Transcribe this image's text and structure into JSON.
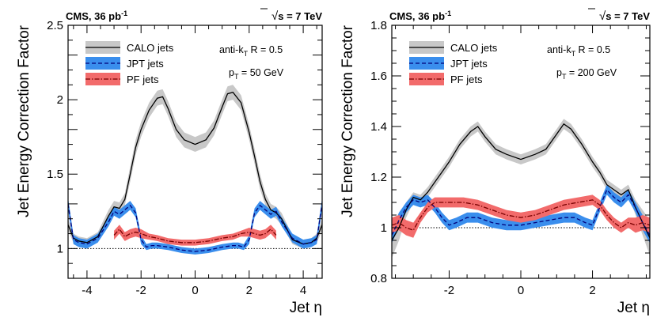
{
  "chart_data": [
    {
      "type": "line",
      "header_left": "CMS, 36 pb",
      "header_left_sup": "-1",
      "header_right_main": "s = 7 TeV",
      "header_right_root": "√",
      "ylabel": "Jet Energy Correction Factor",
      "xlabel": "Jet η",
      "xlim": [
        -4.7,
        4.7
      ],
      "ylim": [
        0.8,
        2.5
      ],
      "xticks": [
        -4,
        -2,
        0,
        2,
        4
      ],
      "yticks": [
        1,
        1.5,
        2,
        2.5
      ],
      "xtick_labels": [
        "-4",
        "-2",
        "0",
        "2",
        "4"
      ],
      "ytick_labels": [
        "1",
        "1.5",
        "2",
        "2.5"
      ],
      "reference_line": 1,
      "annotation_algo": "anti-k",
      "annotation_algo_sub": "T",
      "annotation_algo_rest": " R = 0.5",
      "annotation_pt_main": "p",
      "annotation_pt_sub": "T",
      "annotation_pt_rest": " = 50 GeV",
      "legend_position": "top-left",
      "grid": false,
      "series": [
        {
          "name": "CALO jets",
          "color": "#000000",
          "band_color": "#c8c8c8",
          "x": [
            -4.7,
            -4.5,
            -4.3,
            -4.0,
            -3.6,
            -3.2,
            -3.0,
            -2.8,
            -2.6,
            -2.4,
            -2.2,
            -2.0,
            -1.7,
            -1.4,
            -1.2,
            -1.0,
            -0.7,
            -0.4,
            0.0,
            0.4,
            0.7,
            1.0,
            1.2,
            1.4,
            1.7,
            2.0,
            2.2,
            2.4,
            2.6,
            2.8,
            3.0,
            3.2,
            3.6,
            4.0,
            4.3,
            4.5,
            4.7
          ],
          "y": [
            1.16,
            1.07,
            1.05,
            1.04,
            1.08,
            1.22,
            1.28,
            1.27,
            1.33,
            1.5,
            1.68,
            1.8,
            1.93,
            2.01,
            2.02,
            1.94,
            1.8,
            1.73,
            1.7,
            1.73,
            1.81,
            1.95,
            2.04,
            2.05,
            1.98,
            1.78,
            1.62,
            1.45,
            1.33,
            1.26,
            1.24,
            1.2,
            1.06,
            1.03,
            1.04,
            1.07,
            1.16
          ],
          "band": [
            0.04,
            0.03,
            0.03,
            0.03,
            0.03,
            0.04,
            0.04,
            0.04,
            0.04,
            0.05,
            0.05,
            0.05,
            0.05,
            0.05,
            0.05,
            0.05,
            0.05,
            0.05,
            0.05,
            0.05,
            0.05,
            0.05,
            0.05,
            0.05,
            0.05,
            0.05,
            0.05,
            0.05,
            0.04,
            0.04,
            0.04,
            0.04,
            0.03,
            0.03,
            0.03,
            0.03,
            0.04
          ]
        },
        {
          "name": "JPT jets",
          "color": "#00007a",
          "band_color": "#3a8eed",
          "x": [
            -4.7,
            -4.5,
            -4.3,
            -4.0,
            -3.6,
            -3.2,
            -3.0,
            -2.8,
            -2.6,
            -2.4,
            -2.2,
            -2.0,
            -1.8,
            -1.6,
            -1.4,
            -1.0,
            -0.5,
            0.0,
            0.5,
            1.0,
            1.4,
            1.6,
            1.8,
            2.0,
            2.2,
            2.4,
            2.6,
            2.8,
            3.0,
            3.2,
            3.6,
            4.0,
            4.3,
            4.5,
            4.7
          ],
          "y": [
            1.3,
            1.06,
            1.04,
            1.03,
            1.07,
            1.18,
            1.25,
            1.23,
            1.26,
            1.29,
            1.24,
            1.06,
            1.01,
            1.02,
            1.02,
            1.01,
            0.99,
            0.98,
            0.99,
            1.01,
            1.02,
            1.02,
            1.01,
            1.06,
            1.24,
            1.29,
            1.26,
            1.23,
            1.25,
            1.18,
            1.07,
            1.03,
            1.04,
            1.06,
            1.3
          ],
          "band": [
            0.04,
            0.03,
            0.03,
            0.03,
            0.03,
            0.03,
            0.03,
            0.03,
            0.03,
            0.03,
            0.03,
            0.03,
            0.02,
            0.02,
            0.02,
            0.02,
            0.02,
            0.02,
            0.02,
            0.02,
            0.02,
            0.02,
            0.02,
            0.03,
            0.03,
            0.03,
            0.03,
            0.03,
            0.03,
            0.03,
            0.03,
            0.03,
            0.03,
            0.03,
            0.04
          ]
        },
        {
          "name": "PF jets",
          "color": "#7a0000",
          "band_color": "#f26b6b",
          "x": [
            -3.0,
            -2.8,
            -2.6,
            -2.4,
            -2.2,
            -2.0,
            -1.7,
            -1.4,
            -1.0,
            -0.5,
            0.0,
            0.5,
            1.0,
            1.4,
            1.7,
            2.0,
            2.2,
            2.4,
            2.6,
            2.8,
            3.0
          ],
          "y": [
            1.09,
            1.13,
            1.08,
            1.1,
            1.11,
            1.1,
            1.08,
            1.07,
            1.05,
            1.04,
            1.04,
            1.05,
            1.07,
            1.08,
            1.1,
            1.11,
            1.1,
            1.09,
            1.1,
            1.13,
            1.09
          ],
          "band": [
            0.03,
            0.03,
            0.03,
            0.03,
            0.03,
            0.03,
            0.02,
            0.02,
            0.02,
            0.02,
            0.02,
            0.02,
            0.02,
            0.02,
            0.02,
            0.03,
            0.03,
            0.03,
            0.03,
            0.03,
            0.03
          ]
        }
      ]
    },
    {
      "type": "line",
      "header_left": "CMS, 36 pb",
      "header_left_sup": "-1",
      "header_right_main": "s = 7 TeV",
      "header_right_root": "√",
      "ylabel": "Jet Energy Correction Factor",
      "xlabel": "Jet η",
      "xlim": [
        -3.6,
        3.6
      ],
      "ylim": [
        0.8,
        1.8
      ],
      "xticks": [
        -2,
        0,
        2
      ],
      "yticks": [
        0.8,
        1,
        1.2,
        1.4,
        1.6,
        1.8
      ],
      "xtick_labels": [
        "-2",
        "0",
        "2"
      ],
      "ytick_labels": [
        "0.8",
        "1",
        "1.2",
        "1.4",
        "1.6",
        "1.8"
      ],
      "reference_line": 1,
      "annotation_algo": "anti-k",
      "annotation_algo_sub": "T",
      "annotation_algo_rest": " R = 0.5",
      "annotation_pt_main": "p",
      "annotation_pt_sub": "T",
      "annotation_pt_rest": " = 200 GeV",
      "legend_position": "top-left",
      "grid": false,
      "series": [
        {
          "name": "CALO jets",
          "color": "#000000",
          "band_color": "#c8c8c8",
          "x": [
            -3.6,
            -3.4,
            -3.2,
            -3.0,
            -2.8,
            -2.6,
            -2.4,
            -2.2,
            -2.0,
            -1.7,
            -1.4,
            -1.2,
            -1.0,
            -0.7,
            -0.4,
            0.0,
            0.4,
            0.7,
            1.0,
            1.2,
            1.4,
            1.7,
            2.0,
            2.2,
            2.4,
            2.6,
            2.8,
            3.0,
            3.2,
            3.4,
            3.6
          ],
          "y": [
            0.95,
            1.0,
            1.07,
            1.12,
            1.11,
            1.14,
            1.18,
            1.22,
            1.26,
            1.33,
            1.38,
            1.4,
            1.36,
            1.31,
            1.29,
            1.27,
            1.29,
            1.31,
            1.37,
            1.41,
            1.39,
            1.33,
            1.26,
            1.22,
            1.17,
            1.15,
            1.13,
            1.15,
            1.08,
            1.02,
            0.96
          ],
          "band": [
            0.07,
            0.05,
            0.03,
            0.02,
            0.02,
            0.02,
            0.02,
            0.02,
            0.02,
            0.02,
            0.02,
            0.02,
            0.02,
            0.02,
            0.02,
            0.02,
            0.02,
            0.02,
            0.02,
            0.02,
            0.02,
            0.02,
            0.02,
            0.02,
            0.02,
            0.02,
            0.02,
            0.02,
            0.03,
            0.05,
            0.07
          ]
        },
        {
          "name": "JPT jets",
          "color": "#00007a",
          "band_color": "#3a8eed",
          "x": [
            -3.6,
            -3.4,
            -3.2,
            -3.0,
            -2.8,
            -2.6,
            -2.4,
            -2.2,
            -2.0,
            -1.8,
            -1.5,
            -1.2,
            -0.8,
            -0.4,
            0.0,
            0.4,
            0.8,
            1.2,
            1.5,
            1.8,
            2.0,
            2.2,
            2.4,
            2.6,
            2.8,
            3.0,
            3.2,
            3.4,
            3.6
          ],
          "y": [
            0.97,
            1.03,
            1.08,
            1.11,
            1.1,
            1.11,
            1.08,
            1.04,
            1.01,
            1.02,
            1.04,
            1.04,
            1.02,
            1.01,
            1.01,
            1.02,
            1.03,
            1.04,
            1.04,
            1.02,
            1.01,
            1.08,
            1.15,
            1.12,
            1.1,
            1.13,
            1.08,
            1.02,
            0.97
          ],
          "band": [
            0.03,
            0.03,
            0.02,
            0.02,
            0.02,
            0.02,
            0.02,
            0.02,
            0.02,
            0.02,
            0.02,
            0.02,
            0.02,
            0.02,
            0.02,
            0.02,
            0.02,
            0.02,
            0.02,
            0.02,
            0.02,
            0.02,
            0.02,
            0.02,
            0.02,
            0.02,
            0.02,
            0.03,
            0.03
          ]
        },
        {
          "name": "PF jets",
          "color": "#7a0000",
          "band_color": "#f26b6b",
          "x": [
            -3.6,
            -3.4,
            -3.2,
            -3.0,
            -2.8,
            -2.6,
            -2.4,
            -2.2,
            -2.0,
            -1.6,
            -1.2,
            -0.8,
            -0.4,
            0.0,
            0.4,
            0.8,
            1.2,
            1.6,
            2.0,
            2.2,
            2.4,
            2.6,
            2.8,
            3.0,
            3.2,
            3.4,
            3.6
          ],
          "y": [
            1.01,
            1.02,
            1.0,
            0.99,
            1.04,
            1.08,
            1.1,
            1.1,
            1.1,
            1.1,
            1.09,
            1.07,
            1.05,
            1.04,
            1.05,
            1.07,
            1.09,
            1.1,
            1.11,
            1.09,
            1.05,
            1.02,
            1.0,
            1.02,
            1.01,
            1.02,
            1.01
          ],
          "band": [
            0.03,
            0.03,
            0.03,
            0.03,
            0.02,
            0.02,
            0.02,
            0.02,
            0.02,
            0.02,
            0.02,
            0.02,
            0.02,
            0.02,
            0.02,
            0.02,
            0.02,
            0.02,
            0.02,
            0.02,
            0.02,
            0.02,
            0.02,
            0.02,
            0.03,
            0.03,
            0.03
          ]
        }
      ]
    }
  ]
}
